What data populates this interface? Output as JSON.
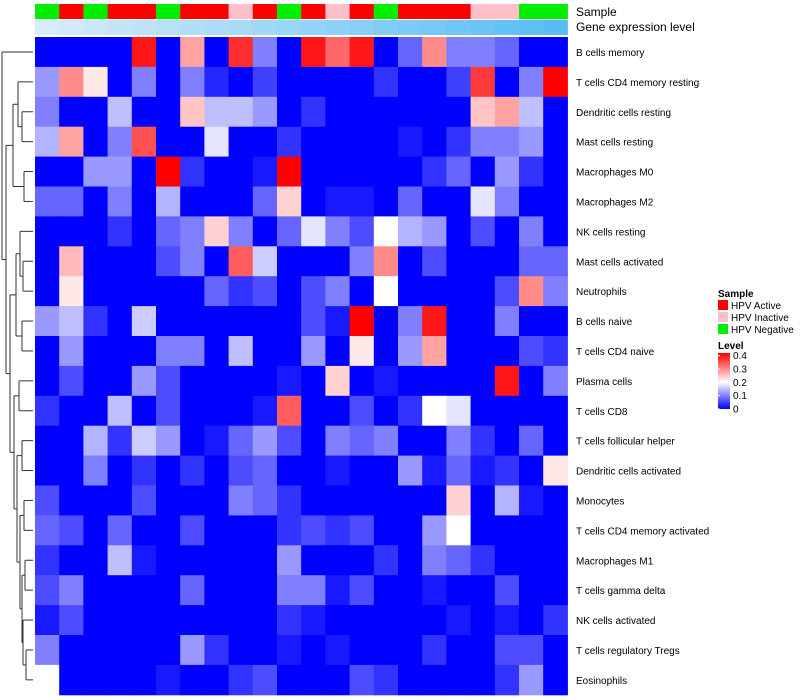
{
  "chart_data": {
    "type": "heatmap",
    "annotation_tracks": [
      "Sample",
      "Gene expression level"
    ],
    "samples": [
      "HPV Negative",
      "HPV Active",
      "HPV Negative",
      "HPV Active",
      "HPV Active",
      "HPV Negative",
      "HPV Active",
      "HPV Active",
      "HPV Inactive",
      "HPV Active",
      "HPV Negative",
      "HPV Active",
      "HPV Inactive",
      "HPV Active",
      "HPV Negative",
      "HPV Active",
      "HPV Active",
      "HPV Active",
      "HPV Inactive",
      "HPV Inactive",
      "HPV Negative",
      "HPV Negative"
    ],
    "gene_expression_level": [
      0,
      0.02,
      0.04,
      0.06,
      0.08,
      0.1,
      0.12,
      0.14,
      0.16,
      0.18,
      0.2,
      0.22,
      0.24,
      0.26,
      0.28,
      0.3,
      0.32,
      0.34,
      0.36,
      0.38,
      0.4,
      0.42
    ],
    "rows": [
      "B cells memory",
      "T cells CD4 memory resting",
      "Dendritic cells resting",
      "Mast cells resting",
      "Macrophages M0",
      "Macrophages M2",
      "NK cells resting",
      "Mast cells activated",
      "Neutrophils",
      "B cells naive",
      "T cells CD4 naive",
      "Plasma cells",
      "T cells CD8",
      "T cells follicular helper",
      "Dendritic cells activated",
      "Monocytes",
      "T cells CD4 memory activated",
      "Macrophages M1",
      "T cells gamma delta",
      "NK cells activated",
      "T cells regulatory  Tregs",
      "Eosinophils"
    ],
    "values": [
      [
        0,
        0,
        0,
        0,
        0.4,
        0,
        0.28,
        0,
        0.38,
        0.1,
        0,
        0.4,
        0.33,
        0.4,
        0,
        0.08,
        0.3,
        0.1,
        0.1,
        0.08,
        0,
        0
      ],
      [
        0.12,
        0.3,
        0.22,
        0,
        0.1,
        0,
        0.1,
        0.03,
        0,
        0.05,
        0,
        0,
        0,
        0,
        0.04,
        0,
        0,
        0.05,
        0.37,
        0,
        0.1,
        0.42
      ],
      [
        0.1,
        0,
        0,
        0.15,
        0,
        0,
        0.25,
        0.15,
        0.15,
        0.12,
        0,
        0.04,
        0,
        0,
        0,
        0,
        0,
        0,
        0.25,
        0.28,
        0.15,
        0
      ],
      [
        0.14,
        0.28,
        0,
        0.1,
        0.35,
        0,
        0,
        0.18,
        0,
        0,
        0.04,
        0,
        0,
        0,
        0,
        0.02,
        0,
        0.04,
        0.1,
        0.1,
        0.12,
        0
      ],
      [
        0,
        0,
        0.12,
        0.12,
        0,
        0.42,
        0.04,
        0,
        0,
        0.02,
        0.42,
        0,
        0,
        0,
        0,
        0,
        0.04,
        0.08,
        0,
        0.12,
        0.04,
        0
      ],
      [
        0.08,
        0.08,
        0,
        0.1,
        0,
        0.14,
        0,
        0,
        0,
        0.08,
        0.24,
        0,
        0.02,
        0.02,
        0,
        0.08,
        0,
        0,
        0.18,
        0.1,
        0,
        0
      ],
      [
        0,
        0,
        0,
        0.04,
        0,
        0.08,
        0.1,
        0.24,
        0.1,
        0,
        0.08,
        0.18,
        0.1,
        0.06,
        0.2,
        0.14,
        0.12,
        0,
        0.06,
        0,
        0.1,
        0
      ],
      [
        0,
        0.26,
        0,
        0,
        0,
        0.06,
        0.1,
        0,
        0.34,
        0.16,
        0,
        0,
        0,
        0.1,
        0.3,
        0,
        0.06,
        0,
        0,
        0,
        0.08,
        0.08
      ],
      [
        0,
        0.22,
        0,
        0,
        0,
        0,
        0,
        0.08,
        0.04,
        0.06,
        0,
        0.06,
        0.1,
        0,
        0.2,
        0,
        0,
        0,
        0,
        0.06,
        0.3,
        0.1
      ],
      [
        0.12,
        0.15,
        0.04,
        0,
        0.16,
        0,
        0,
        0,
        0,
        0,
        0,
        0.06,
        0.02,
        0.42,
        0,
        0.1,
        0.4,
        0,
        0,
        0.1,
        0,
        0
      ],
      [
        0,
        0.12,
        0,
        0,
        0,
        0.1,
        0.1,
        0,
        0.15,
        0,
        0,
        0.12,
        0,
        0.22,
        0,
        0.12,
        0.28,
        0,
        0,
        0,
        0.06,
        0.04
      ],
      [
        0,
        0.06,
        0,
        0,
        0.12,
        0.06,
        0,
        0,
        0,
        0,
        0.02,
        0,
        0.24,
        0,
        0.02,
        0,
        0,
        0,
        0,
        0.4,
        0,
        0.1
      ],
      [
        0.04,
        0,
        0,
        0.15,
        0,
        0.06,
        0,
        0,
        0,
        0.02,
        0.34,
        0,
        0,
        0.06,
        0,
        0.04,
        0.2,
        0.18,
        0,
        0,
        0,
        0
      ],
      [
        0,
        0,
        0.14,
        0.04,
        0.16,
        0.12,
        0,
        0.02,
        0.08,
        0.12,
        0.06,
        0,
        0.1,
        0.08,
        0.1,
        0,
        0,
        0.1,
        0.04,
        0,
        0.08,
        0
      ],
      [
        0,
        0,
        0.1,
        0,
        0.04,
        0,
        0.04,
        0,
        0.06,
        0.08,
        0,
        0,
        0.02,
        0,
        0,
        0.12,
        0.02,
        0.08,
        0.02,
        0.04,
        0,
        0.22
      ],
      [
        0.06,
        0,
        0,
        0,
        0.06,
        0,
        0,
        0,
        0.1,
        0.08,
        0.04,
        0,
        0,
        0,
        0,
        0,
        0,
        0.24,
        0,
        0.14,
        0.02,
        0
      ],
      [
        0.08,
        0.06,
        0,
        0.08,
        0,
        0,
        0.06,
        0,
        0,
        0,
        0.04,
        0.06,
        0.04,
        0.06,
        0,
        0,
        0.12,
        0.2,
        0,
        0,
        0,
        0
      ],
      [
        0.04,
        0,
        0,
        0.15,
        0.02,
        0,
        0,
        0,
        0,
        0,
        0.12,
        0,
        0,
        0,
        0.04,
        0,
        0.1,
        0.08,
        0.04,
        0,
        0,
        0
      ],
      [
        0.06,
        0.1,
        0,
        0,
        0,
        0,
        0.08,
        0,
        0,
        0,
        0.1,
        0.1,
        0.02,
        0.06,
        0,
        0,
        0.02,
        0,
        0,
        0.06,
        0,
        0
      ],
      [
        0.02,
        0.06,
        0,
        0,
        0,
        0,
        0,
        0,
        0,
        0,
        0.04,
        0.02,
        0,
        0,
        0,
        0,
        0,
        0.02,
        0,
        0.02,
        0,
        0.04
      ],
      [
        0.1,
        0,
        0,
        0,
        0,
        0,
        0.12,
        0.04,
        0,
        0,
        0.02,
        0,
        0.02,
        0,
        0,
        0,
        0.04,
        0,
        0,
        0.06,
        0.06,
        0
      ],
      [
        0.2,
        0,
        0,
        0,
        0,
        0.02,
        0,
        0,
        0.04,
        0.06,
        0,
        0,
        0,
        0.06,
        0.04,
        0,
        0,
        0,
        0,
        0.04,
        0.12,
        0
      ]
    ],
    "value_range": [
      0,
      0.42
    ],
    "legend": {
      "sample_title": "Sample",
      "sample_items": [
        {
          "label": "HPV Active",
          "color": "#ff0000"
        },
        {
          "label": "HPV Inactive",
          "color": "#ffc0cb"
        },
        {
          "label": "HPV Negative",
          "color": "#00ee00"
        }
      ],
      "level_title": "Level",
      "level_ticks": [
        {
          "label": "0.4",
          "value": 0.4
        },
        {
          "label": "0.3",
          "value": 0.3
        },
        {
          "label": "0.2",
          "value": 0.2
        },
        {
          "label": "0.1",
          "value": 0.1
        },
        {
          "label": "0",
          "value": 0
        }
      ]
    },
    "colors": {
      "low": "#0000ff",
      "mid": "#ffffff",
      "high": "#ff0000",
      "expr_low": "#d6ecf9",
      "expr_high": "#58bdf5"
    }
  }
}
